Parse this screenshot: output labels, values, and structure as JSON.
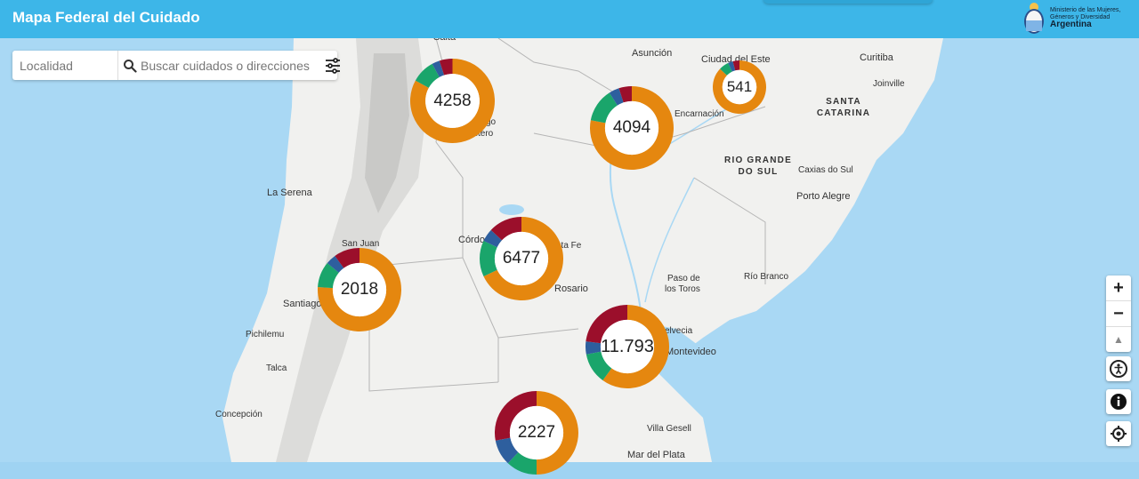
{
  "header": {
    "title": "Mapa Federal del Cuidado",
    "ministry_line1": "Ministerio de las Mujeres,",
    "ministry_line2": "Géneros y Diversidad",
    "country": "Argentina"
  },
  "search": {
    "locality_placeholder": "Localidad",
    "query_placeholder": "Buscar cuidados o direcciones"
  },
  "colors": {
    "header": "#3db6e8",
    "orange": "#e5870f",
    "green": "#1aa56b",
    "blue": "#2e5f9e",
    "red": "#9b0f2b"
  },
  "places": {
    "salta": "Salta",
    "asuncion": "Asunción",
    "ciudad_del_este": "Ciudad del Este",
    "curitiba": "Curitiba",
    "joinville": "Joinville",
    "encarnacion": "Encarnación",
    "santiago_estero_a": "go",
    "santiago_estero_b": "stero",
    "la_serena": "La Serena",
    "caxias": "Caxias do Sul",
    "porto_alegre": "Porto Alegre",
    "san_juan": "San Juan",
    "cordoba": "Córdo",
    "santa_fe": "nta Fe",
    "rosario": "Rosario",
    "santiago": "Santiago",
    "paso_1": "Paso de",
    "paso_2": "los Toros",
    "rio_branco": "Río Branco",
    "pichilemu": "Pichilemu",
    "helvecia": "elvecia",
    "montevideo": "Montevideo",
    "talca": "Talca",
    "concepcion": "Concepción",
    "villa_gesell": "Villa Gesell",
    "mar_del_plata": "Mar del Plata"
  },
  "regions": {
    "santa_catarina": [
      "SANTA",
      "CATARINA"
    ],
    "rio_grande": [
      "RIO GRANDE",
      "DO SUL"
    ]
  },
  "clusters": [
    {
      "label": "4258",
      "segments": [
        0.83,
        0.09,
        0.03,
        0.05
      ]
    },
    {
      "label": "4094",
      "segments": [
        0.78,
        0.13,
        0.04,
        0.05
      ]
    },
    {
      "label": "541",
      "segments": [
        0.87,
        0.06,
        0.03,
        0.04
      ]
    },
    {
      "label": "6477",
      "segments": [
        0.68,
        0.14,
        0.05,
        0.13
      ]
    },
    {
      "label": "2018",
      "segments": [
        0.76,
        0.1,
        0.04,
        0.1
      ]
    },
    {
      "label": "11.793",
      "segments": [
        0.6,
        0.12,
        0.05,
        0.23
      ]
    },
    {
      "label": "2227",
      "segments": [
        0.5,
        0.12,
        0.1,
        0.28
      ]
    }
  ],
  "controls": {
    "zoom_in": "+",
    "zoom_out": "−",
    "compass": "▲"
  },
  "icons": [
    "search-icon",
    "filter-icon",
    "accessibility-icon",
    "info-icon",
    "locate-icon",
    "coat-of-arms-icon"
  ]
}
